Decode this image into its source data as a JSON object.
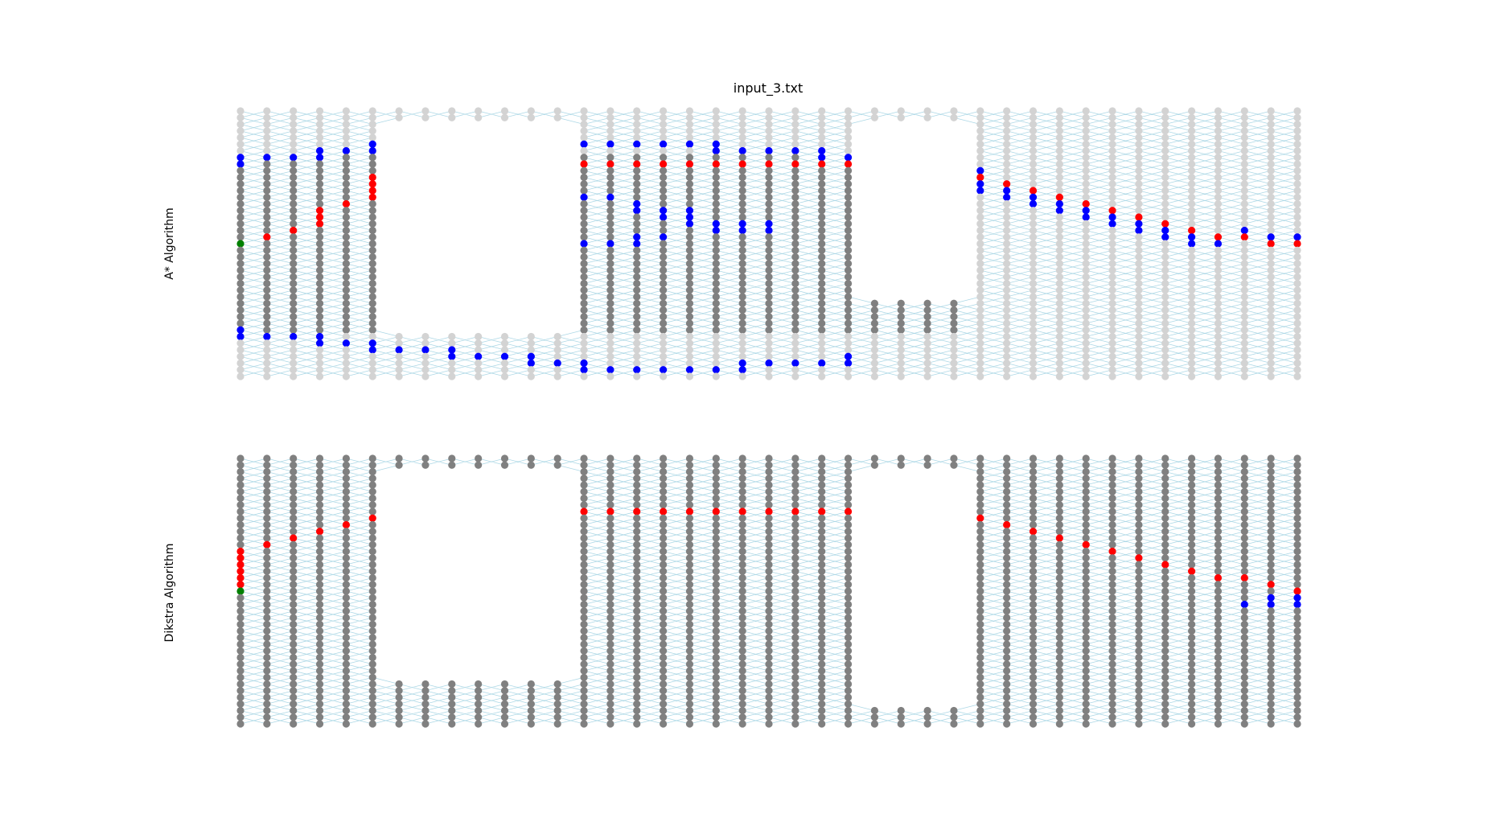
{
  "title": "input_3.txt",
  "chart_data": [
    {
      "type": "scatter",
      "name": "astar",
      "ylabel": "A* Algorithm",
      "ncols": 41,
      "nrows": 41,
      "holes": [
        {
          "cols": [
            6,
            12
          ],
          "rows": [
            2,
            33
          ]
        },
        {
          "cols": [
            24,
            27
          ],
          "rows": [
            2,
            28
          ]
        }
      ],
      "gray_rows": [
        7,
        33
      ],
      "gray_cols": [
        0,
        27
      ],
      "colors": {
        "unvisited": "#d3d3d3",
        "visited": "#808080",
        "frontier": "#0000ff",
        "path": "#ff0000",
        "start": "#008000",
        "edge": "#add8e6"
      },
      "start": [
        0,
        20
      ],
      "path": [
        [
          1,
          19
        ],
        [
          2,
          18
        ],
        [
          3,
          16
        ],
        [
          3,
          17
        ],
        [
          3,
          15
        ],
        [
          4,
          14
        ],
        [
          5,
          13
        ],
        [
          5,
          12
        ],
        [
          5,
          11
        ],
        [
          5,
          10
        ],
        [
          6,
          8
        ],
        [
          7,
          8
        ],
        [
          8,
          8
        ],
        [
          9,
          8
        ],
        [
          10,
          8
        ],
        [
          11,
          8
        ],
        [
          12,
          8
        ],
        [
          13,
          8
        ],
        [
          14,
          8
        ],
        [
          15,
          8
        ],
        [
          16,
          8
        ],
        [
          17,
          8
        ],
        [
          18,
          8
        ],
        [
          19,
          8
        ],
        [
          20,
          8
        ],
        [
          21,
          8
        ],
        [
          22,
          8
        ],
        [
          23,
          8
        ],
        [
          24,
          8
        ],
        [
          25,
          8
        ],
        [
          26,
          8
        ],
        [
          28,
          10
        ],
        [
          29,
          11
        ],
        [
          30,
          12
        ],
        [
          31,
          13
        ],
        [
          32,
          14
        ],
        [
          33,
          15
        ],
        [
          34,
          16
        ],
        [
          35,
          17
        ],
        [
          36,
          18
        ],
        [
          37,
          19
        ],
        [
          38,
          19
        ],
        [
          39,
          20
        ],
        [
          40,
          20
        ]
      ],
      "frontier": [
        [
          0,
          7
        ],
        [
          0,
          8
        ],
        [
          1,
          7
        ],
        [
          2,
          7
        ],
        [
          3,
          6
        ],
        [
          3,
          7
        ],
        [
          4,
          6
        ],
        [
          5,
          5
        ],
        [
          5,
          6
        ],
        [
          6,
          5
        ],
        [
          7,
          5
        ],
        [
          8,
          4
        ],
        [
          8,
          5
        ],
        [
          9,
          4
        ],
        [
          10,
          4
        ],
        [
          11,
          4
        ],
        [
          12,
          4
        ],
        [
          12,
          5
        ],
        [
          13,
          5
        ],
        [
          14,
          5
        ],
        [
          15,
          5
        ],
        [
          16,
          5
        ],
        [
          17,
          5
        ],
        [
          18,
          5
        ],
        [
          18,
          6
        ],
        [
          19,
          6
        ],
        [
          20,
          6
        ],
        [
          21,
          6
        ],
        [
          22,
          6
        ],
        [
          22,
          7
        ],
        [
          23,
          7
        ],
        [
          24,
          7
        ],
        [
          25,
          7
        ],
        [
          25,
          8
        ],
        [
          26,
          9
        ],
        [
          26,
          10
        ],
        [
          27,
          10
        ],
        [
          27,
          11
        ],
        [
          28,
          11
        ],
        [
          28,
          12
        ],
        [
          29,
          12
        ],
        [
          29,
          13
        ],
        [
          30,
          13
        ],
        [
          30,
          14
        ],
        [
          31,
          14
        ],
        [
          31,
          15
        ],
        [
          32,
          15
        ],
        [
          32,
          16
        ],
        [
          33,
          16
        ],
        [
          33,
          17
        ],
        [
          34,
          17
        ],
        [
          34,
          18
        ],
        [
          35,
          18
        ],
        [
          35,
          19
        ],
        [
          36,
          19
        ],
        [
          36,
          20
        ],
        [
          37,
          20
        ],
        [
          38,
          18
        ],
        [
          39,
          19
        ],
        [
          40,
          19
        ],
        [
          13,
          13
        ],
        [
          14,
          13
        ],
        [
          15,
          14
        ],
        [
          15,
          15
        ],
        [
          16,
          15
        ],
        [
          16,
          16
        ],
        [
          17,
          15
        ],
        [
          17,
          16
        ],
        [
          17,
          17
        ],
        [
          18,
          17
        ],
        [
          18,
          18
        ],
        [
          19,
          17
        ],
        [
          19,
          18
        ],
        [
          20,
          17
        ],
        [
          20,
          18
        ],
        [
          13,
          20
        ],
        [
          14,
          20
        ],
        [
          15,
          19
        ],
        [
          15,
          20
        ],
        [
          16,
          19
        ],
        [
          0,
          33
        ],
        [
          0,
          34
        ],
        [
          1,
          34
        ],
        [
          2,
          34
        ],
        [
          3,
          34
        ],
        [
          3,
          35
        ],
        [
          4,
          35
        ],
        [
          5,
          35
        ],
        [
          5,
          36
        ],
        [
          6,
          36
        ],
        [
          7,
          36
        ],
        [
          8,
          36
        ],
        [
          8,
          37
        ],
        [
          9,
          37
        ],
        [
          10,
          37
        ],
        [
          11,
          37
        ],
        [
          11,
          38
        ],
        [
          12,
          38
        ],
        [
          13,
          38
        ],
        [
          13,
          39
        ],
        [
          14,
          39
        ],
        [
          15,
          39
        ],
        [
          16,
          39
        ],
        [
          17,
          39
        ],
        [
          18,
          39
        ],
        [
          19,
          38
        ],
        [
          19,
          39
        ],
        [
          20,
          38
        ],
        [
          21,
          38
        ],
        [
          22,
          38
        ],
        [
          23,
          37
        ],
        [
          23,
          38
        ],
        [
          27,
          9
        ],
        [
          27,
          10
        ],
        [
          28,
          9
        ],
        [
          28,
          10
        ]
      ]
    },
    {
      "type": "scatter",
      "name": "dijkstra",
      "ylabel": "Dikstra Algorithm",
      "ncols": 41,
      "nrows": 41,
      "holes": [
        {
          "cols": [
            6,
            12
          ],
          "rows": [
            2,
            33
          ]
        },
        {
          "cols": [
            24,
            27
          ],
          "rows": [
            2,
            37
          ]
        }
      ],
      "gray_rows": [
        0,
        40
      ],
      "gray_cols": [
        0,
        40
      ],
      "colors": {
        "unvisited": "#d3d3d3",
        "visited": "#808080",
        "frontier": "#0000ff",
        "path": "#ff0000",
        "start": "#008000",
        "edge": "#add8e6"
      },
      "start": [
        0,
        20
      ],
      "path": [
        [
          0,
          14
        ],
        [
          0,
          15
        ],
        [
          0,
          16
        ],
        [
          0,
          17
        ],
        [
          0,
          18
        ],
        [
          0,
          19
        ],
        [
          1,
          13
        ],
        [
          2,
          12
        ],
        [
          3,
          11
        ],
        [
          4,
          10
        ],
        [
          5,
          9
        ],
        [
          6,
          8
        ],
        [
          7,
          8
        ],
        [
          8,
          8
        ],
        [
          9,
          8
        ],
        [
          10,
          8
        ],
        [
          11,
          8
        ],
        [
          12,
          8
        ],
        [
          13,
          8
        ],
        [
          14,
          8
        ],
        [
          15,
          8
        ],
        [
          16,
          8
        ],
        [
          17,
          8
        ],
        [
          18,
          8
        ],
        [
          19,
          8
        ],
        [
          20,
          8
        ],
        [
          21,
          8
        ],
        [
          22,
          8
        ],
        [
          23,
          8
        ],
        [
          24,
          8
        ],
        [
          25,
          8
        ],
        [
          26,
          8
        ],
        [
          27,
          8
        ],
        [
          28,
          9
        ],
        [
          29,
          10
        ],
        [
          30,
          11
        ],
        [
          31,
          12
        ],
        [
          32,
          13
        ],
        [
          33,
          14
        ],
        [
          34,
          15
        ],
        [
          35,
          16
        ],
        [
          36,
          17
        ],
        [
          37,
          18
        ],
        [
          38,
          18
        ],
        [
          39,
          19
        ],
        [
          40,
          20
        ]
      ],
      "frontier": [
        [
          38,
          22
        ],
        [
          39,
          21
        ],
        [
          39,
          22
        ],
        [
          40,
          21
        ],
        [
          40,
          22
        ]
      ]
    }
  ]
}
